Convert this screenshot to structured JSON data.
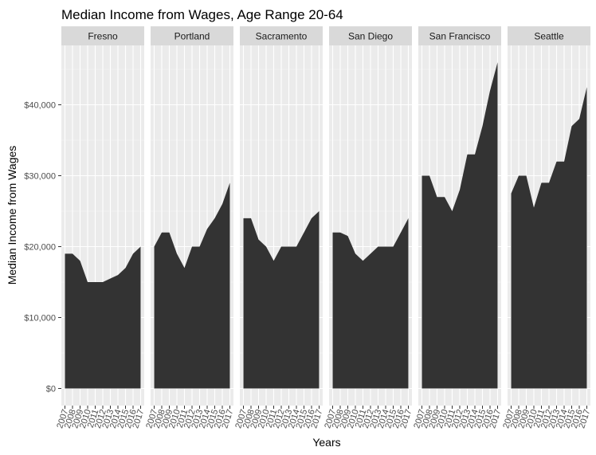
{
  "chart_data": {
    "type": "area",
    "title": "Median Income from Wages, Age Range 20-64",
    "xlabel": "Years",
    "ylabel": "Median Income from Wages",
    "x": [
      "2007",
      "2008",
      "2009",
      "2010",
      "2011",
      "2012",
      "2013",
      "2014",
      "2015",
      "2016",
      "2017"
    ],
    "ylim": [
      0,
      49000
    ],
    "y_ticks": [
      0,
      10000,
      20000,
      30000,
      40000
    ],
    "y_tick_labels": [
      "$0",
      "$10,000",
      "$20,000",
      "$30,000",
      "$40,000"
    ],
    "grid": true,
    "legend": "none",
    "facets": [
      {
        "name": "Fresno",
        "values": [
          19000,
          19000,
          18000,
          15000,
          15000,
          15000,
          15500,
          16000,
          17000,
          19000,
          20000
        ]
      },
      {
        "name": "Portland",
        "values": [
          20000,
          22000,
          22000,
          19000,
          17000,
          20000,
          20000,
          22500,
          24000,
          26000,
          29000
        ]
      },
      {
        "name": "Sacramento",
        "values": [
          24000,
          24000,
          21000,
          20000,
          18000,
          20000,
          20000,
          20000,
          22000,
          24000,
          25000
        ]
      },
      {
        "name": "San Diego",
        "values": [
          22000,
          22000,
          21500,
          19000,
          18000,
          19000,
          20000,
          20000,
          20000,
          22000,
          24000
        ]
      },
      {
        "name": "San Francisco",
        "values": [
          30000,
          30000,
          27000,
          27000,
          25000,
          28000,
          33000,
          33000,
          37000,
          42000,
          46000
        ]
      },
      {
        "name": "Seattle",
        "values": [
          27500,
          30000,
          30000,
          25500,
          29000,
          29000,
          32000,
          32000,
          37000,
          38000,
          42500
        ]
      }
    ]
  },
  "colors": {
    "panel_background": "#ebebeb",
    "grid_major": "#ffffff",
    "area_fill": "#333333",
    "strip_background": "#d9d9d9",
    "strip_text": "#1a1a1a",
    "tick_text": "#4d4d4d"
  }
}
